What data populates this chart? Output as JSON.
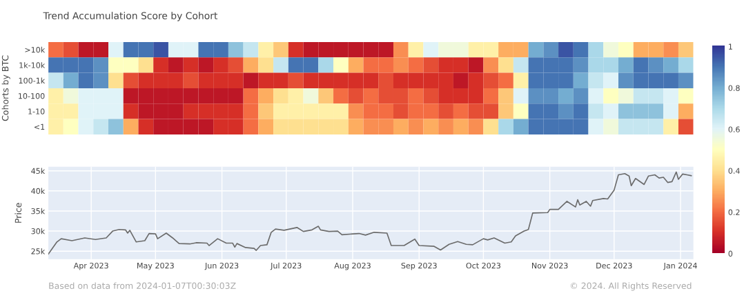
{
  "chart_data": [
    {
      "type": "heatmap",
      "title": "Trend Accumulation Score by Cohort",
      "ylabel": "Cohorts by BTC",
      "tick_labels": "y",
      "categories": [
        null,
        null,
        null,
        null,
        null,
        null,
        null,
        null,
        null,
        null,
        null,
        null,
        null,
        null,
        null,
        null,
        null,
        null,
        null,
        null,
        null,
        null,
        null,
        null,
        null,
        null,
        null,
        null,
        null,
        null,
        null,
        null,
        null,
        null,
        null,
        null,
        null,
        null,
        null,
        null,
        null,
        null,
        null
      ],
      "y_categories": [
        ">10k",
        "1k-10k",
        "100-1k",
        "10-100",
        "1-10",
        "<1"
      ],
      "cells": [
        [
          0.2,
          0.15,
          0.05,
          0.05,
          0.6,
          0.9,
          0.9,
          0.95,
          0.6,
          0.6,
          0.9,
          0.9,
          0.75,
          0.65,
          0.45,
          0.35,
          0.1,
          0.05,
          0.05,
          0.05,
          0.05,
          0.05,
          0.05,
          0.25,
          0.45,
          0.6,
          0.55,
          0.55,
          0.45,
          0.45,
          0.3,
          0.3,
          0.8,
          0.85,
          0.95,
          0.9,
          0.7,
          0.55,
          0.5,
          0.3,
          0.3,
          0.25,
          0.35
        ],
        [
          0.9,
          0.9,
          0.9,
          0.85,
          0.5,
          0.5,
          0.4,
          0.1,
          0.05,
          0.1,
          0.05,
          0.1,
          0.15,
          0.3,
          0.4,
          0.65,
          0.9,
          0.9,
          0.7,
          0.5,
          0.3,
          0.2,
          0.2,
          0.25,
          0.2,
          0.15,
          0.1,
          0.1,
          0.05,
          0.25,
          0.4,
          0.65,
          0.9,
          0.9,
          0.9,
          0.85,
          0.7,
          0.7,
          0.8,
          0.9,
          0.85,
          0.8,
          0.7
        ],
        [
          0.65,
          0.8,
          0.9,
          0.85,
          0.4,
          0.15,
          0.1,
          0.1,
          0.1,
          0.15,
          0.1,
          0.1,
          0.1,
          0.05,
          0.1,
          0.1,
          0.15,
          0.1,
          0.1,
          0.1,
          0.1,
          0.1,
          0.15,
          0.1,
          0.1,
          0.1,
          0.1,
          0.05,
          0.1,
          0.15,
          0.2,
          0.45,
          0.9,
          0.9,
          0.9,
          0.8,
          0.65,
          0.6,
          0.85,
          0.9,
          0.9,
          0.9,
          0.85
        ],
        [
          0.45,
          0.55,
          0.6,
          0.6,
          0.6,
          0.05,
          0.05,
          0.05,
          0.05,
          0.05,
          0.05,
          0.05,
          0.05,
          0.2,
          0.3,
          0.4,
          0.45,
          0.55,
          0.35,
          0.2,
          0.15,
          0.2,
          0.15,
          0.15,
          0.2,
          0.15,
          0.1,
          0.1,
          0.1,
          0.2,
          0.35,
          0.6,
          0.85,
          0.85,
          0.8,
          0.85,
          0.6,
          0.5,
          0.55,
          0.65,
          0.65,
          0.6,
          0.5
        ],
        [
          0.45,
          0.45,
          0.6,
          0.6,
          0.6,
          0.1,
          0.05,
          0.05,
          0.05,
          0.1,
          0.1,
          0.1,
          0.1,
          0.2,
          0.35,
          0.45,
          0.45,
          0.45,
          0.45,
          0.45,
          0.25,
          0.2,
          0.2,
          0.15,
          0.2,
          0.2,
          0.15,
          0.2,
          0.15,
          0.15,
          0.35,
          0.5,
          0.9,
          0.9,
          0.85,
          0.9,
          0.65,
          0.6,
          0.75,
          0.75,
          0.75,
          0.6,
          0.3
        ],
        [
          0.45,
          0.5,
          0.6,
          0.65,
          0.75,
          0.3,
          0.1,
          0.05,
          0.05,
          0.05,
          0.05,
          0.1,
          0.1,
          0.2,
          0.3,
          0.4,
          0.4,
          0.4,
          0.4,
          0.4,
          0.3,
          0.25,
          0.25,
          0.3,
          0.25,
          0.3,
          0.25,
          0.3,
          0.25,
          0.4,
          0.7,
          0.8,
          0.9,
          0.9,
          0.9,
          0.9,
          0.6,
          0.55,
          0.65,
          0.65,
          0.65,
          0.45,
          0.15
        ]
      ],
      "clim": [
        0,
        1
      ],
      "cticks": [
        0,
        0.2,
        0.4,
        0.6,
        0.8,
        1
      ]
    },
    {
      "type": "line",
      "ylabel": "Price",
      "grid": true,
      "x": [
        "2023-03-12",
        "2023-03-16",
        "2023-03-18",
        "2023-03-23",
        "2023-03-29",
        "2023-04-03",
        "2023-04-08",
        "2023-04-11",
        "2023-04-14",
        "2023-04-17",
        "2023-04-18",
        "2023-04-19",
        "2023-04-22",
        "2023-04-26",
        "2023-04-28",
        "2023-05-01",
        "2023-05-02",
        "2023-05-06",
        "2023-05-09",
        "2023-05-12",
        "2023-05-17",
        "2023-05-20",
        "2023-05-25",
        "2023-05-26",
        "2023-05-30",
        "2023-06-03",
        "2023-06-06",
        "2023-06-07",
        "2023-06-08",
        "2023-06-12",
        "2023-06-16",
        "2023-06-17",
        "2023-06-19",
        "2023-06-22",
        "2023-06-24",
        "2023-06-26",
        "2023-06-30",
        "2023-07-06",
        "2023-07-09",
        "2023-07-13",
        "2023-07-16",
        "2023-07-17",
        "2023-07-21",
        "2023-07-25",
        "2023-07-27",
        "2023-08-04",
        "2023-08-07",
        "2023-08-11",
        "2023-08-17",
        "2023-08-19",
        "2023-08-25",
        "2023-08-30",
        "2023-09-01",
        "2023-09-08",
        "2023-09-11",
        "2023-09-15",
        "2023-09-19",
        "2023-09-23",
        "2023-09-26",
        "2023-10-01",
        "2023-10-03",
        "2023-10-06",
        "2023-10-11",
        "2023-10-14",
        "2023-10-16",
        "2023-10-20",
        "2023-10-22",
        "2023-10-24",
        "2023-10-31",
        "2023-11-01",
        "2023-11-05",
        "2023-11-09",
        "2023-11-13",
        "2023-11-14",
        "2023-11-15",
        "2023-11-18",
        "2023-11-20",
        "2023-11-21",
        "2023-11-26",
        "2023-11-28",
        "2023-12-01",
        "2023-12-03",
        "2023-12-06",
        "2023-12-08",
        "2023-12-09",
        "2023-12-11",
        "2023-12-15",
        "2023-12-17",
        "2023-12-20",
        "2023-12-22",
        "2023-12-24",
        "2023-12-26",
        "2023-12-28",
        "2023-12-30",
        "2023-12-31",
        "2024-01-02",
        "2024-01-04",
        "2024-01-06"
      ],
      "series": [
        {
          "color": "#6b6b6b",
          "values": [
            24300,
            27300,
            28100,
            27600,
            28300,
            27900,
            28300,
            30000,
            30400,
            30300,
            29500,
            30200,
            27300,
            27600,
            29400,
            29300,
            28100,
            29500,
            28300,
            26900,
            26800,
            27100,
            27000,
            26400,
            28100,
            27000,
            27000,
            26000,
            26900,
            25900,
            25700,
            25200,
            26400,
            26600,
            29700,
            30500,
            30200,
            30900,
            29900,
            30300,
            31200,
            30300,
            29900,
            30000,
            29100,
            29400,
            29000,
            29700,
            29500,
            26400,
            26400,
            28000,
            26400,
            26200,
            25300,
            26700,
            27400,
            26700,
            26600,
            28100,
            27800,
            28300,
            27000,
            27300,
            28800,
            30000,
            30400,
            34500,
            34600,
            35400,
            35400,
            37400,
            36000,
            37800,
            36500,
            37400,
            36200,
            37600,
            38100,
            38000,
            40200,
            44000,
            44300,
            43700,
            41300,
            43100,
            41600,
            43700,
            44000,
            43200,
            43400,
            42100,
            42300,
            44700,
            42900,
            44200,
            44000,
            43800
          ]
        }
      ],
      "xlim": [
        "2023-03-12",
        "2024-01-07"
      ],
      "xticks": [
        {
          "value": "2023-04-01",
          "label": "Apr 2023"
        },
        {
          "value": "2023-05-01",
          "label": "May 2023"
        },
        {
          "value": "2023-06-01",
          "label": "Jun 2023"
        },
        {
          "value": "2023-07-01",
          "label": "Jul 2023"
        },
        {
          "value": "2023-08-01",
          "label": "Aug 2023"
        },
        {
          "value": "2023-09-01",
          "label": "Sep 2023"
        },
        {
          "value": "2023-10-01",
          "label": "Oct 2023"
        },
        {
          "value": "2023-11-01",
          "label": "Nov 2023"
        },
        {
          "value": "2023-12-01",
          "label": "Dec 2023"
        },
        {
          "value": "2024-01-01",
          "label": "Jan 2024"
        }
      ],
      "ylim": [
        23000,
        46000
      ],
      "yticks": [
        {
          "value": 25000,
          "label": "25k"
        },
        {
          "value": 30000,
          "label": "30k"
        },
        {
          "value": 35000,
          "label": "35k"
        },
        {
          "value": 40000,
          "label": "40k"
        },
        {
          "value": 45000,
          "label": "45k"
        }
      ],
      "annotations": [
        "Based on data from 2024-01-07T00:30:03Z",
        "© 2024. All Rights Reserved"
      ]
    }
  ]
}
